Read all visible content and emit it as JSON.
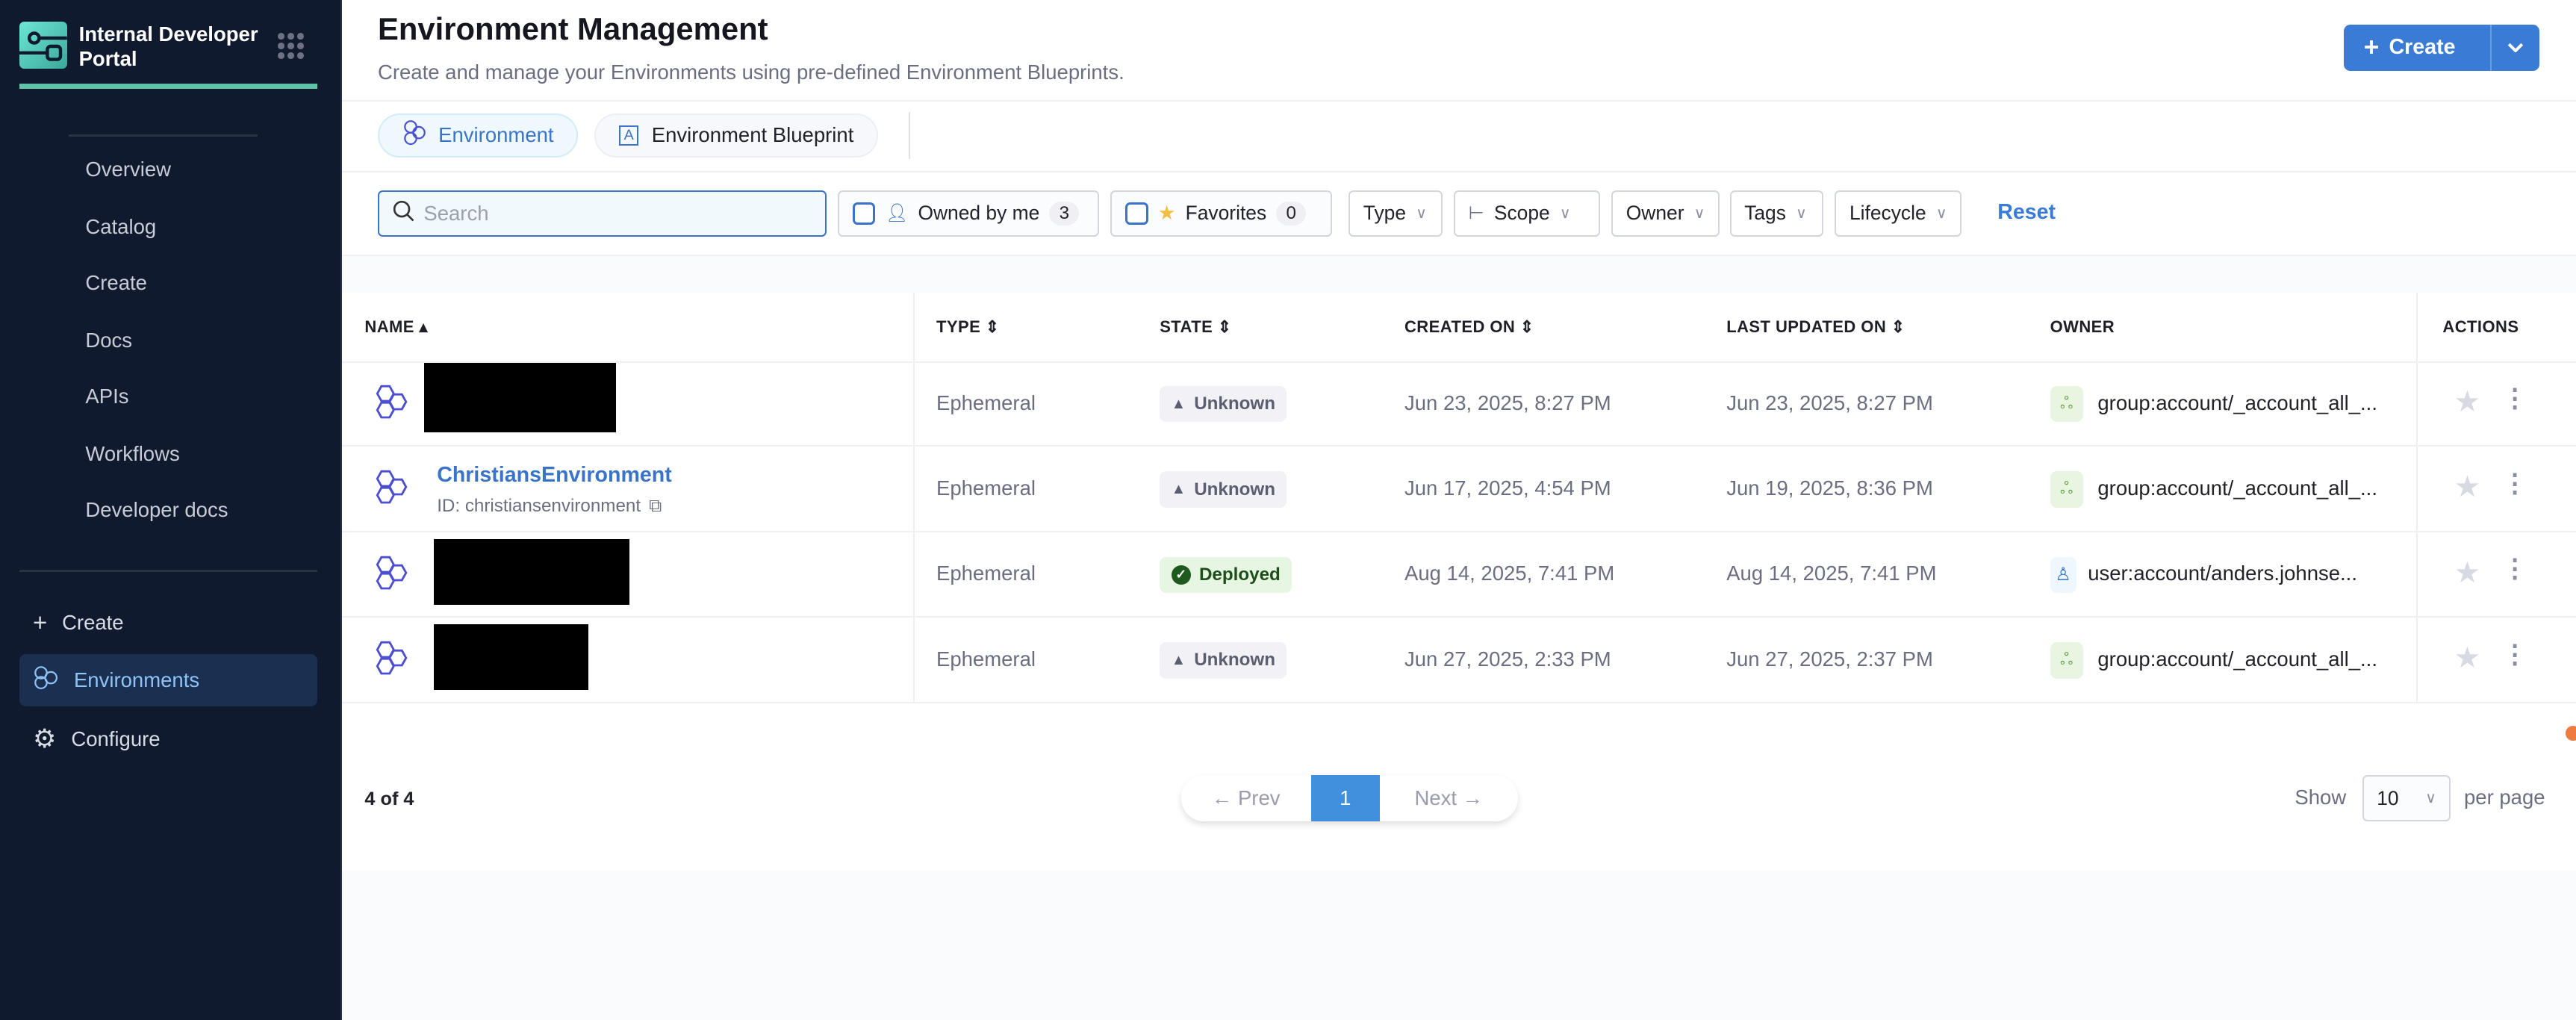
{
  "sidebar": {
    "brand": "Internal Developer Portal",
    "nav": [
      "Overview",
      "Catalog",
      "Create",
      "Docs",
      "APIs",
      "Workflows",
      "Developer docs"
    ],
    "create": "Create",
    "environments": "Environments",
    "configure": "Configure"
  },
  "header": {
    "title": "Environment Management",
    "subtitle": "Create and manage your Environments using pre-defined Environment Blueprints.",
    "create_label": "Create"
  },
  "tabs": [
    {
      "label": "Environment",
      "active": true
    },
    {
      "label": "Environment Blueprint",
      "active": false
    }
  ],
  "filters": {
    "search_placeholder": "Search",
    "owned_by_me": "Owned by me",
    "owned_count": "3",
    "favorites": "Favorites",
    "favorites_count": "0",
    "type": "Type",
    "scope": "Scope",
    "owner": "Owner",
    "tags": "Tags",
    "lifecycle": "Lifecycle",
    "reset": "Reset"
  },
  "table": {
    "headers": [
      "NAME",
      "TYPE",
      "STATE",
      "CREATED ON",
      "LAST UPDATED ON",
      "OWNER",
      "ACTIONS"
    ],
    "rows": [
      {
        "name": "",
        "id": "",
        "type": "Ephemeral",
        "state": "Unknown",
        "created": "Jun 23, 2025, 8:27 PM",
        "updated": "Jun 23, 2025, 8:27 PM",
        "owner": "group:account/_account_all_...",
        "owner_kind": "group"
      },
      {
        "name": "ChristiansEnvironment",
        "id": "ID: christiansenvironment",
        "type": "Ephemeral",
        "state": "Unknown",
        "created": "Jun 17, 2025, 4:54 PM",
        "updated": "Jun 19, 2025, 8:36 PM",
        "owner": "group:account/_account_all_...",
        "owner_kind": "group"
      },
      {
        "name": "",
        "id": "",
        "type": "Ephemeral",
        "state": "Deployed",
        "created": "Aug 14, 2025, 7:41 PM",
        "updated": "Aug 14, 2025, 7:41 PM",
        "owner": "user:account/anders.johnse...",
        "owner_kind": "user"
      },
      {
        "name": "",
        "id": "",
        "type": "Ephemeral",
        "state": "Unknown",
        "created": "Jun 27, 2025, 2:33 PM",
        "updated": "Jun 27, 2025, 2:37 PM",
        "owner": "group:account/_account_all_...",
        "owner_kind": "group"
      }
    ]
  },
  "footer": {
    "count": "4 of 4",
    "prev": "← Prev",
    "page": "1",
    "next": "Next →",
    "show": "Show",
    "per_page_value": "10",
    "per_page": "per page"
  },
  "colors": {
    "sidebar_bg": "#101a2e",
    "accent": "#3a7bd5",
    "teal": "#5fc3a8"
  }
}
